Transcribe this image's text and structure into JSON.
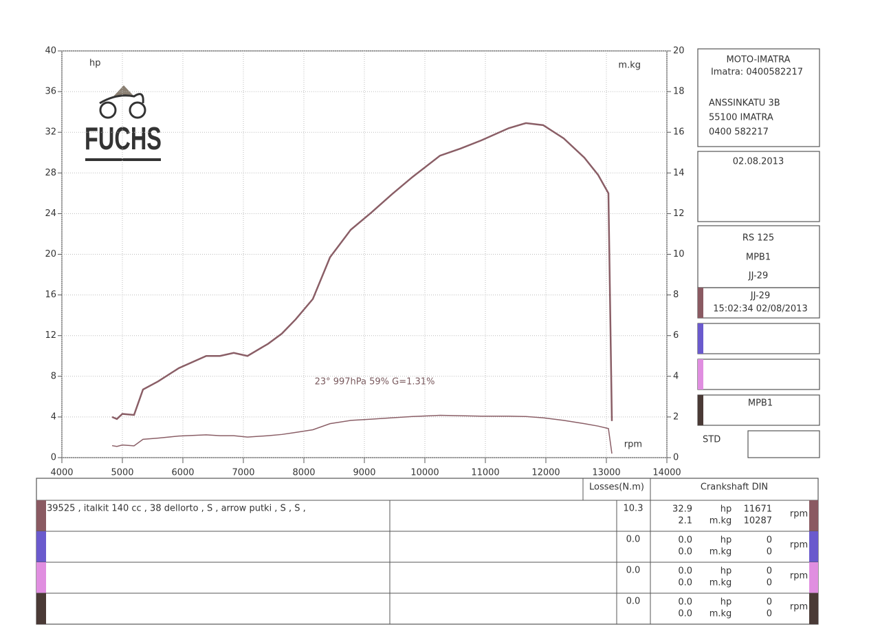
{
  "chart_data": {
    "type": "line",
    "logo": "FUCHS",
    "ylabel": "hp",
    "y2label": "m.kg",
    "xlabel": "rpm",
    "annotation": "23°  997hPa  59%   G=1.31%",
    "x": [
      4830,
      4909,
      5000,
      5193,
      5341,
      5591,
      5932,
      6386,
      6614,
      6841,
      7068,
      7409,
      7636,
      7864,
      8148,
      8432,
      8773,
      9114,
      9455,
      9795,
      10250,
      10591,
      10932,
      11386,
      11670,
      11955,
      12295,
      12636,
      12864,
      13034,
      13091
    ],
    "series": [
      {
        "name": "hp",
        "color": "#8a5e66",
        "values": [
          4.0,
          3.8,
          4.3,
          4.2,
          6.7,
          7.5,
          8.8,
          10.0,
          10.0,
          10.3,
          10.0,
          11.2,
          12.2,
          13.6,
          15.6,
          19.7,
          22.4,
          24.1,
          25.9,
          27.6,
          29.7,
          30.4,
          31.2,
          32.4,
          32.9,
          32.7,
          31.4,
          29.5,
          27.8,
          26.0,
          3.6
        ]
      },
      {
        "name": "m.kg",
        "color": "#8a5e66",
        "axis": "y2",
        "values": [
          0.59,
          0.55,
          0.62,
          0.58,
          0.9,
          0.96,
          1.06,
          1.12,
          1.08,
          1.08,
          1.01,
          1.08,
          1.14,
          1.24,
          1.37,
          1.67,
          1.83,
          1.89,
          1.96,
          2.02,
          2.08,
          2.06,
          2.04,
          2.04,
          2.02,
          1.96,
          1.83,
          1.67,
          1.55,
          1.43,
          0.2
        ]
      }
    ],
    "xlim": [
      4000,
      14000
    ],
    "xticks": [
      4000,
      5000,
      6000,
      7000,
      8000,
      9000,
      10000,
      11000,
      12000,
      13000,
      14000
    ],
    "ylim": [
      0,
      40
    ],
    "yticks": [
      0,
      4,
      8,
      12,
      16,
      20,
      24,
      28,
      32,
      36,
      40
    ],
    "y2lim": [
      0,
      20
    ],
    "y2ticks": [
      0,
      2,
      4,
      6,
      8,
      10,
      12,
      14,
      16,
      18,
      20
    ],
    "grid": true
  },
  "info_panel": {
    "shop": "MOTO-IMATRA",
    "phone_line": "Imatra: 0400582217",
    "address": [
      "ANSSINKATU 3B",
      "55100 IMATRA",
      "0400 582217"
    ],
    "date": "02.08.2013",
    "vehicle": [
      "RS 125",
      "MPB1",
      "JJ-29"
    ],
    "runs": [
      {
        "color": "#8a5a62",
        "lines": [
          "JJ-29",
          "15:02:34  02/08/2013"
        ]
      },
      {
        "color": "#6a5acd",
        "lines": []
      },
      {
        "color": "#e08ee0",
        "lines": []
      },
      {
        "color": "#4a3a36",
        "lines": [
          "MPB1"
        ]
      }
    ],
    "std": "STD"
  },
  "table": {
    "header": {
      "losses": "Losses(N.m)",
      "crankshaft": "Crankshaft DIN"
    },
    "units": {
      "hp": "hp",
      "mkg": "m.kg",
      "rpm": "rpm"
    },
    "rows": [
      {
        "description": "39525 , italkit 140 cc   , 38 dellorto , S  , arrow putki  , S  , S  ,",
        "losses": "10.3",
        "hp": "32.9",
        "mkg": "2.1",
        "hp_rpm": "11671",
        "mkg_rpm": "10287"
      },
      {
        "losses": "0.0",
        "hp": "0.0",
        "mkg": "0.0",
        "hp_rpm": "0",
        "mkg_rpm": "0"
      },
      {
        "losses": "0.0",
        "hp": "0.0",
        "mkg": "0.0",
        "hp_rpm": "0",
        "mkg_rpm": "0"
      },
      {
        "losses": "0.0",
        "hp": "0.0",
        "mkg": "0.0",
        "hp_rpm": "0",
        "mkg_rpm": "0"
      }
    ]
  }
}
